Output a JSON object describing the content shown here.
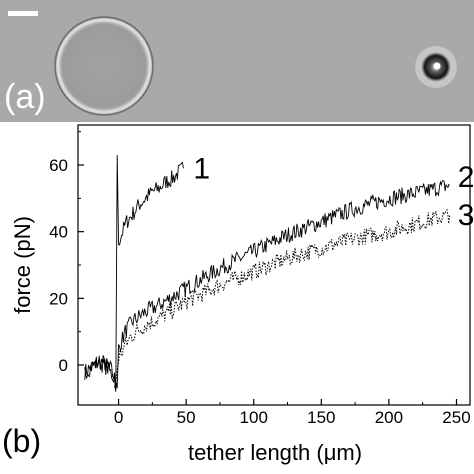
{
  "panel_a": {
    "label": "(a)",
    "colors": {
      "background": "#a9a9a9",
      "vesicle_fill": "#9f9f9f",
      "halo": "#dcdcdc",
      "bead": "#141414"
    }
  },
  "panel_b": {
    "label": "(b)",
    "chart_data": {
      "type": "line",
      "xlabel": "tether length (μm)",
      "ylabel": "force (pN)",
      "xlim": [
        -30,
        260
      ],
      "ylim": [
        -12,
        72
      ],
      "xticks": [
        "0",
        "50",
        "100",
        "150",
        "200",
        "250"
      ],
      "yticks": [
        "0",
        "20",
        "40",
        "60"
      ],
      "xtick_values": [
        0,
        50,
        100,
        150,
        200,
        250
      ],
      "ytick_values": [
        0,
        20,
        40,
        60
      ],
      "series": [
        {
          "name": "1",
          "style": "solid",
          "x": [
            -25,
            -18,
            -12,
            -6,
            -3,
            -2,
            -1,
            0,
            3,
            6,
            10,
            15,
            20,
            25,
            30,
            35,
            40,
            45,
            48
          ],
          "y": [
            -2,
            0,
            1,
            -1,
            -4,
            -8,
            63,
            37,
            40,
            43,
            45,
            48,
            50,
            52,
            53,
            55,
            56,
            58,
            59
          ]
        },
        {
          "name": "2",
          "style": "solid",
          "x": [
            -25,
            -15,
            -8,
            -3,
            -1,
            0,
            5,
            10,
            20,
            30,
            50,
            75,
            100,
            125,
            150,
            175,
            200,
            225,
            245
          ],
          "y": [
            -2,
            1,
            -1,
            -4,
            -8,
            5,
            10,
            13,
            16,
            18,
            23,
            29,
            34,
            39,
            43,
            47,
            50,
            52,
            54
          ]
        },
        {
          "name": "3",
          "style": "dotted",
          "x": [
            -3,
            0,
            5,
            10,
            20,
            30,
            50,
            75,
            100,
            125,
            150,
            175,
            200,
            225,
            245
          ],
          "y": [
            -8,
            2,
            6,
            9,
            12,
            14,
            19,
            24,
            28,
            32,
            35,
            38,
            40,
            43,
            45
          ]
        }
      ]
    }
  }
}
